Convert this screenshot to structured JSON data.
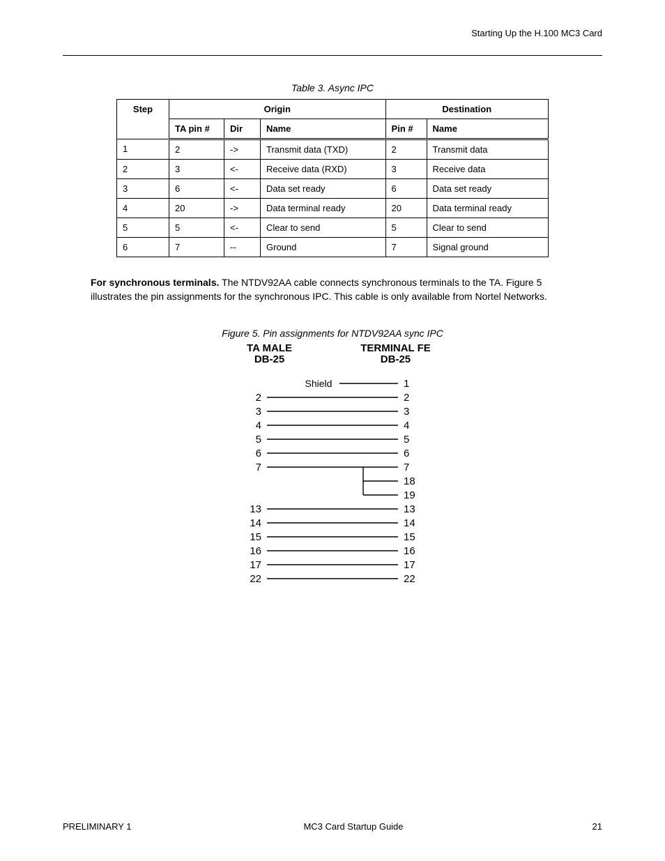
{
  "header": {
    "right_text": "Starting Up the H.100 MC3 Card"
  },
  "table": {
    "caption": "Table 3. Async IPC",
    "head": {
      "step": "Step",
      "origin_span": "Origin",
      "dest_span": "Destination",
      "sub_origin": "TA pin #",
      "sub_dir": "Dir",
      "sub_name": "Name",
      "sub_dest_pin": "Pin #",
      "sub_dest_name": "Name"
    },
    "rows": [
      {
        "step": "1",
        "origin_pin": "2",
        "dir": "->",
        "origin_name": "Transmit data (TXD)",
        "dest_pin": "2",
        "dest_name": "Transmit data"
      },
      {
        "step": "2",
        "origin_pin": "3",
        "dir": "<-",
        "origin_name": "Receive data (RXD)",
        "dest_pin": "3",
        "dest_name": "Receive data"
      },
      {
        "step": "3",
        "origin_pin": "6",
        "dir": "<-",
        "origin_name": "Data set ready",
        "dest_pin": "6",
        "dest_name": "Data set ready"
      },
      {
        "step": "4",
        "origin_pin": "20",
        "dir": "->",
        "origin_name": "Data terminal ready",
        "dest_pin": "20",
        "dest_name": "Data terminal ready"
      },
      {
        "step": "5",
        "origin_pin": "5",
        "dir": "<-",
        "origin_name": "Clear to send",
        "dest_pin": "5",
        "dest_name": "Clear to send"
      },
      {
        "step": "6",
        "origin_pin": "7",
        "dir": "--",
        "origin_name": "Ground",
        "dest_pin": "7",
        "dest_name": "Signal ground"
      }
    ]
  },
  "paragraph": {
    "lead": "For synchronous terminals.",
    "rest": " The NTDV92AA cable connects synchronous terminals to the TA. Figure 5 illustrates the pin assignments for the synchronous IPC. This cable is only available from Nortel Networks."
  },
  "figure": {
    "caption": "Figure 5. Pin assignments for NTDV92AA sync IPC",
    "left_header_line1": "TA MALE",
    "left_header_line2": "DB-25",
    "right_header_line1": "TERMINAL FE",
    "right_header_line2": "DB-25",
    "shield_label": "Shield",
    "shield_right": "1",
    "pairs": [
      {
        "l": "2",
        "r": "2"
      },
      {
        "l": "3",
        "r": "3"
      },
      {
        "l": "4",
        "r": "4"
      },
      {
        "l": "5",
        "r": "5"
      },
      {
        "l": "6",
        "r": "6"
      },
      {
        "l": "7",
        "r": "7"
      }
    ],
    "extra_right": [
      "18",
      "19"
    ],
    "pairs2": [
      {
        "l": "13",
        "r": "13"
      },
      {
        "l": "14",
        "r": "14"
      },
      {
        "l": "15",
        "r": "15"
      },
      {
        "l": "16",
        "r": "16"
      },
      {
        "l": "17",
        "r": "17"
      },
      {
        "l": "22",
        "r": "22"
      }
    ],
    "style": {
      "line_color": "#000000",
      "text_font_size": 15,
      "label_font_size": 14
    }
  },
  "footer": {
    "revision": "PRELIMINARY 1",
    "doc_title": "MC3 Card Startup Guide",
    "page": "21"
  }
}
